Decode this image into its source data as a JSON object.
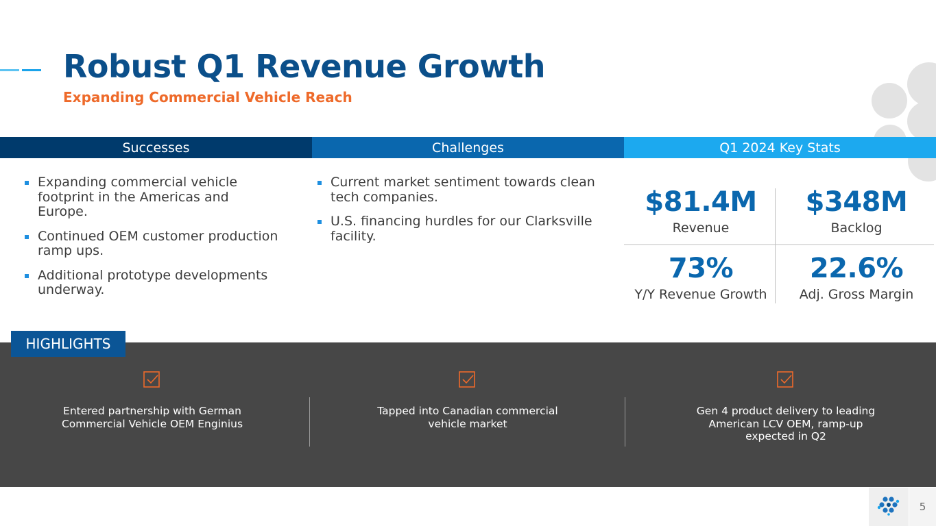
{
  "slide": {
    "title": "Robust Q1 Revenue Growth",
    "subtitle": "Expanding Commercial Vehicle Reach",
    "page_number": "5"
  },
  "columns": {
    "successes": {
      "header": "Successes",
      "items": [
        "Expanding commercial vehicle footprint in the Americas and Europe.",
        "Continued OEM customer production ramp ups.",
        "Additional prototype developments underway."
      ]
    },
    "challenges": {
      "header": "Challenges",
      "items": [
        "Current market sentiment towards clean tech companies.",
        "U.S. financing hurdles for our Clarksville facility."
      ]
    },
    "stats": {
      "header": "Q1 2024 Key Stats",
      "items": [
        {
          "value": "$81.4M",
          "label": "Revenue"
        },
        {
          "value": "$348M",
          "label": "Backlog"
        },
        {
          "value": "73%",
          "label": "Y/Y Revenue Growth"
        },
        {
          "value": "22.6%",
          "label": "Adj. Gross Margin"
        }
      ]
    }
  },
  "highlights": {
    "tag": "HIGHLIGHTS",
    "items": [
      {
        "icon": "check-box-icon",
        "text": "Entered partnership with German Commercial Vehicle OEM Enginius"
      },
      {
        "icon": "check-box-icon",
        "text": "Tapped into Canadian commercial vehicle market"
      },
      {
        "icon": "check-box-icon",
        "text": "Gen 4 product delivery to leading American LCV OEM, ramp-up expected in Q2"
      }
    ]
  },
  "colors": {
    "title": "#0b4f8a",
    "subtitle": "#ee6a2a",
    "successes_header": "#003a6c",
    "challenges_header": "#0a67ae",
    "stats_header": "#1ca9ef",
    "highlights_band": "#474747",
    "highlights_tag": "#0b5596",
    "check_icon": "#ee6a2a"
  }
}
